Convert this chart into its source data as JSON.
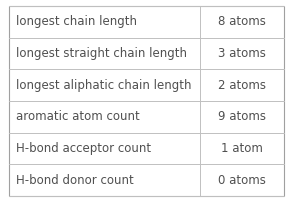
{
  "rows": [
    {
      "label": "longest chain length",
      "value": "8 atoms"
    },
    {
      "label": "longest straight chain length",
      "value": "3 atoms"
    },
    {
      "label": "longest aliphatic chain length",
      "value": "2 atoms"
    },
    {
      "label": "aromatic atom count",
      "value": "9 atoms"
    },
    {
      "label": "H-bond acceptor count",
      "value": "1 atom"
    },
    {
      "label": "H-bond donor count",
      "value": "0 atoms"
    }
  ],
  "col_split": 0.695,
  "background_color": "#ffffff",
  "border_color": "#c0c0c0",
  "text_color": "#505050",
  "font_size": 8.5,
  "outer_border_color": "#a0a0a0",
  "fig_width": 2.93,
  "fig_height": 2.02,
  "dpi": 100
}
